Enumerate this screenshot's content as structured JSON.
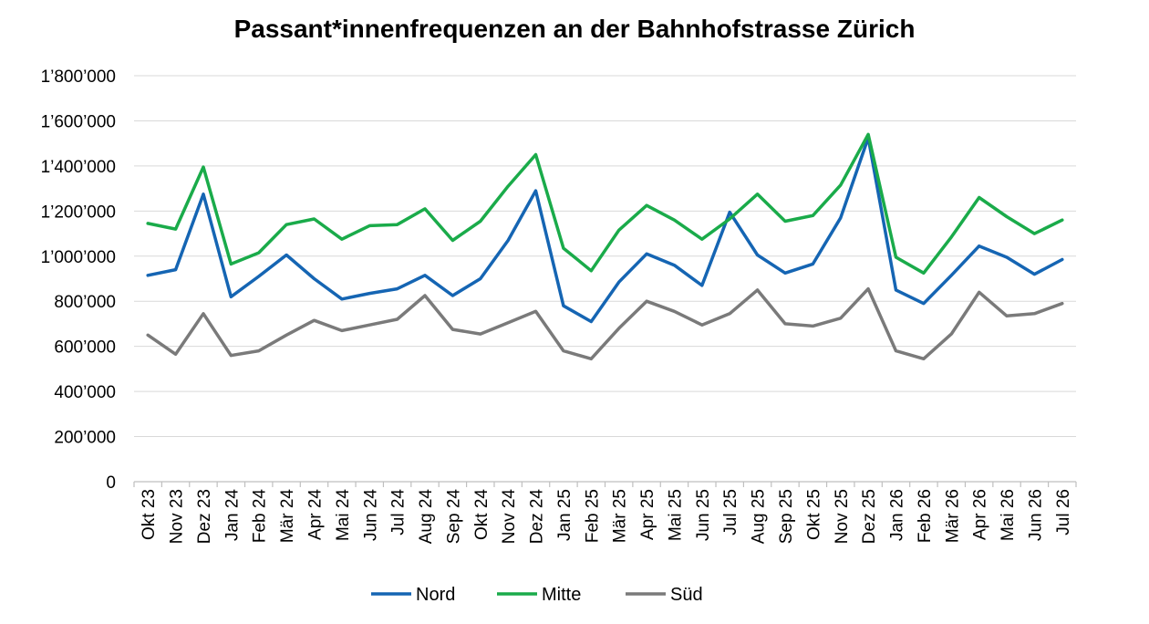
{
  "chart_data": {
    "type": "line",
    "title": "Passant*innenfrequenzen an der Bahnhofstrasse Zürich",
    "xlabel": "",
    "ylabel": "",
    "ylim": [
      0,
      1800000
    ],
    "yticks": [
      0,
      200000,
      400000,
      600000,
      800000,
      1000000,
      1200000,
      1400000,
      1600000,
      1800000
    ],
    "ytick_labels": [
      "0",
      "200’000",
      "400’000",
      "600’000",
      "800’000",
      "1’000’000",
      "1’200’000",
      "1’400’000",
      "1’600’000",
      "1’800’000"
    ],
    "grid": true,
    "legend_position": "bottom",
    "categories": [
      "Okt 23",
      "Nov 23",
      "Dez 23",
      "Jan 24",
      "Feb 24",
      "Mär 24",
      "Apr 24",
      "Mai 24",
      "Jun 24",
      "Jul 24",
      "Aug 24",
      "Sep 24",
      "Okt 24",
      "Nov 24",
      "Dez 24",
      "Jan 25",
      "Feb 25",
      "Mär 25",
      "Apr 25",
      "Mai 25",
      "Jun 25",
      "Jul 25",
      "Aug 25",
      "Sep 25",
      "Okt 25",
      "Nov 25",
      "Dez 25",
      "Jan 26",
      "Feb 26",
      "Mär 26",
      "Apr 26",
      "Mai 26",
      "Jun 26",
      "Jul 26"
    ],
    "series": [
      {
        "name": "Nord",
        "color": "#1565b3",
        "values": [
          915000,
          940000,
          1275000,
          820000,
          910000,
          1005000,
          900000,
          810000,
          835000,
          855000,
          915000,
          825000,
          900000,
          1070000,
          1290000,
          780000,
          710000,
          885000,
          1010000,
          960000,
          870000,
          1195000,
          1005000,
          925000,
          965000,
          1170000,
          1525000,
          850000,
          790000,
          915000,
          1045000,
          995000,
          920000,
          985000
        ]
      },
      {
        "name": "Mitte",
        "color": "#1aab4a",
        "values": [
          1145000,
          1120000,
          1395000,
          965000,
          1015000,
          1140000,
          1165000,
          1075000,
          1135000,
          1140000,
          1210000,
          1070000,
          1155000,
          1310000,
          1450000,
          1035000,
          935000,
          1115000,
          1225000,
          1160000,
          1075000,
          1165000,
          1275000,
          1155000,
          1180000,
          1315000,
          1540000,
          995000,
          925000,
          1085000,
          1260000,
          1175000,
          1100000,
          1160000
        ]
      },
      {
        "name": "Süd",
        "color": "#7a7a7a",
        "values": [
          650000,
          565000,
          745000,
          560000,
          580000,
          650000,
          715000,
          670000,
          695000,
          720000,
          825000,
          675000,
          655000,
          705000,
          755000,
          580000,
          545000,
          680000,
          800000,
          755000,
          695000,
          745000,
          850000,
          700000,
          690000,
          725000,
          855000,
          580000,
          545000,
          655000,
          840000,
          735000,
          745000,
          790000
        ]
      }
    ]
  }
}
